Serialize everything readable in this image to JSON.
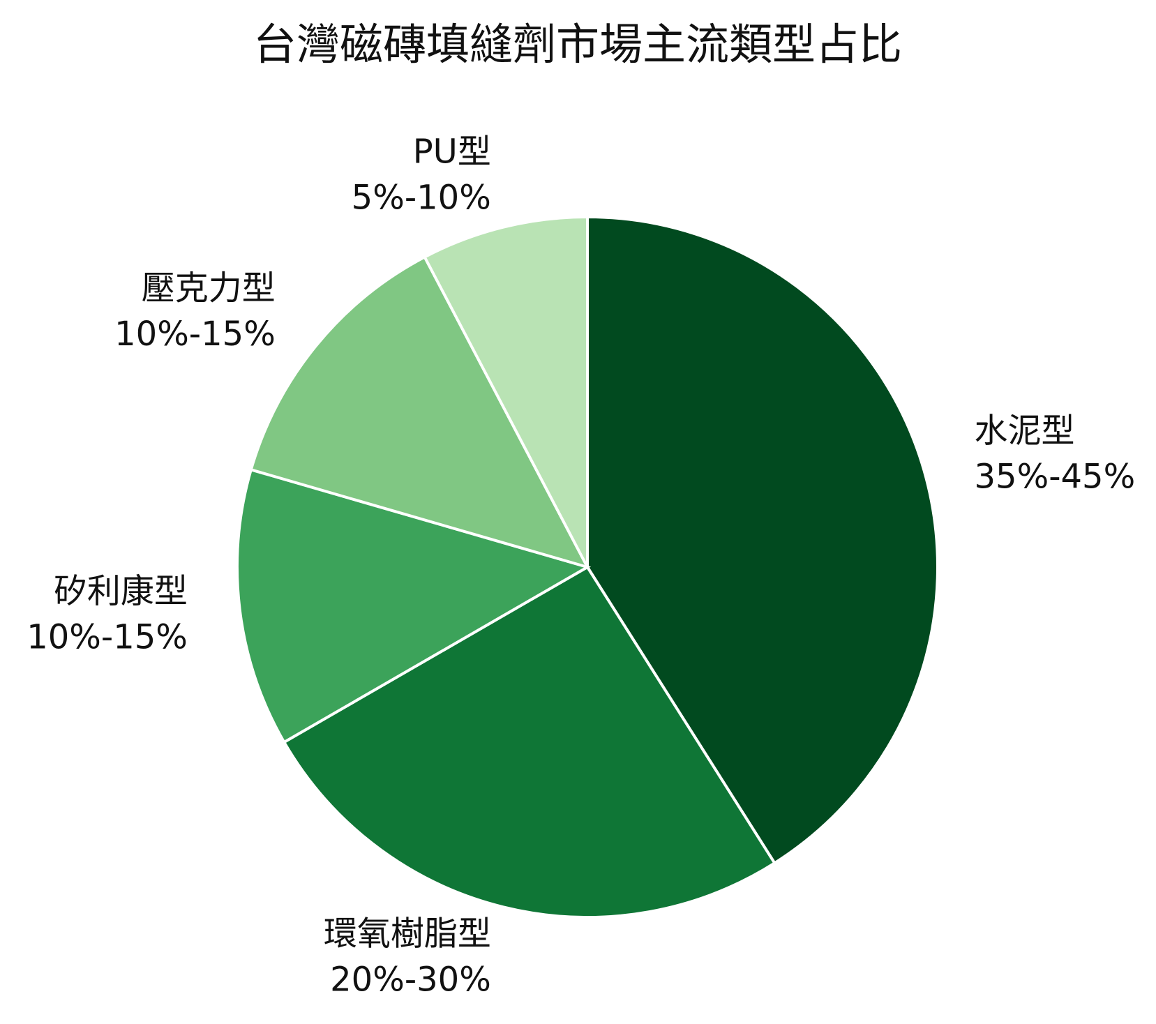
{
  "chart_data": {
    "type": "pie",
    "title": "台灣磁磚填縫劑市場主流類型占比",
    "categories": [
      "水泥型",
      "環氧樹脂型",
      "矽利康型",
      "壓克力型",
      "PU型"
    ],
    "values": [
      40,
      25,
      12.5,
      12.5,
      7.5
    ],
    "value_labels": [
      "35%-45%",
      "20%-30%",
      "10%-15%",
      "10%-15%",
      "5%-10%"
    ],
    "colors": [
      "#014a1f",
      "#0f7636",
      "#3ca35a",
      "#80c783",
      "#b9e3b4"
    ]
  }
}
